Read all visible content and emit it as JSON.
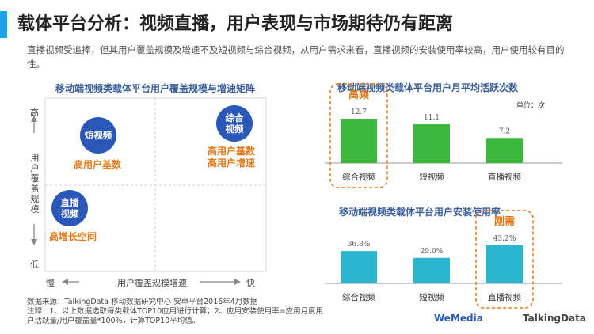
{
  "title": "载体平台分析：视频直播，用户表现与市场期待仍有距离",
  "description": "直播视频受追捧，但其用户覆盖规模及增速不及短视频与综合视频，从用户需求来看，直播视频的安装使用率较高，用户使用较有目的性。",
  "matrix": {
    "title": "移动端视频类载体平台用户覆盖规模与增速矩阵",
    "y_high": "高",
    "y_low": "低",
    "y_label": "用户覆盖规模",
    "x_slow": "慢",
    "x_fast": "快",
    "x_label": "用户覆盖规模增速",
    "items": [
      {
        "circle": "短视频",
        "label": "高用户基数"
      },
      {
        "circle": "综合视频",
        "label": "高用户基数\n高用户增速"
      },
      {
        "circle": "直播视频",
        "label": "高增长空间"
      }
    ]
  },
  "chart_data": [
    {
      "type": "bar",
      "title": "移动端视频类载体平台用户月平均活跃次数",
      "unit": "单位：次",
      "categories": [
        "综合视频",
        "短视频",
        "直播视频"
      ],
      "values": [
        12.7,
        11.1,
        7.2
      ],
      "value_labels": [
        "12.7",
        "11.1",
        "7.2"
      ],
      "highlight": {
        "category": "综合视频",
        "label": "高频"
      },
      "color": "#3cb83c"
    },
    {
      "type": "bar",
      "title": "移动端视频类载体平台用户安装使用率",
      "categories": [
        "综合视频",
        "短视频",
        "直播视频"
      ],
      "values": [
        36.8,
        29.0,
        43.2
      ],
      "value_labels": [
        "36.8%",
        "29.0%",
        "43.2%"
      ],
      "highlight": {
        "category": "直播视频",
        "label": "刚需"
      },
      "color": "#2bb6cf"
    }
  ],
  "footnote": {
    "source": "数据来源：TalkingData 移动数据研究中心 安卓平台2016年4月数据",
    "note": "注释：1、以上数据选取每类载体TOP10应用进行计算；2、应用安装使用率=应用月度用户活跃量/用户覆盖量*100%，计算TOP10平均值。"
  },
  "logos": {
    "wemedia": "WeMedia",
    "talkingdata": "TalkingData"
  },
  "colors": {
    "accent": "#1aa3e8",
    "circle": "#2a58b8",
    "highlight": "#e07a1a"
  }
}
